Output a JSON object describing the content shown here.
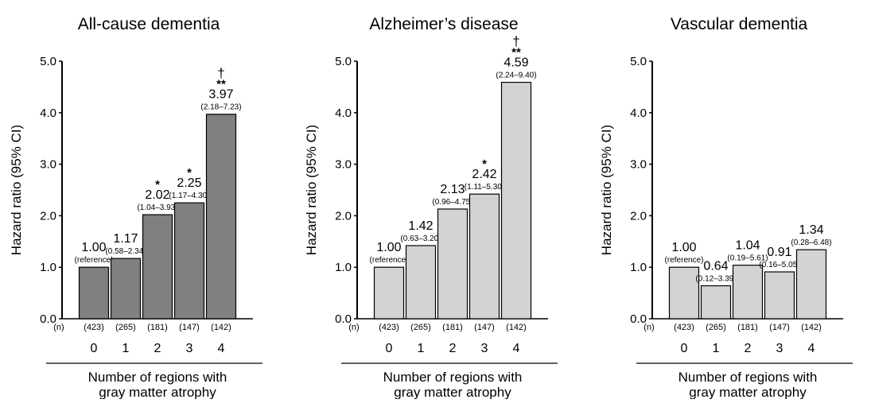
{
  "figure": {
    "xlabel_lines": [
      "Number of regions with",
      "gray matter atrophy"
    ],
    "ylabel": "Hazard ratio (95% CI)",
    "n_marker": "(n)"
  },
  "chart_data": [
    {
      "type": "bar",
      "title": "All-cause dementia",
      "xlabel": "Number of regions with gray matter atrophy",
      "ylabel": "Hazard ratio (95% CI)",
      "ylim": [
        0,
        5
      ],
      "yticks": [
        "0.0",
        "1.0",
        "2.0",
        "3.0",
        "4.0",
        "5.0"
      ],
      "categories": [
        "0",
        "1",
        "2",
        "3",
        "4"
      ],
      "n": [
        "(423)",
        "(265)",
        "(181)",
        "(147)",
        "(142)"
      ],
      "values": [
        1.0,
        1.17,
        2.02,
        2.25,
        3.97
      ],
      "value_labels": [
        "1.00",
        "1.17",
        "2.02",
        "2.25",
        "3.97"
      ],
      "ci_labels": [
        "(reference)",
        "(0.58–2.34)",
        "(1.04–3.93)",
        "(1.17–4.30)",
        "(2.18–7.23)"
      ],
      "significance": [
        "",
        "",
        "*",
        "*",
        "**"
      ],
      "trend_marks": [
        "",
        "",
        "",
        "",
        "†"
      ],
      "bar_color": "#808080"
    },
    {
      "type": "bar",
      "title": "Alzheimer’s disease",
      "xlabel": "Number of regions with gray matter atrophy",
      "ylabel": "Hazard ratio (95% CI)",
      "ylim": [
        0,
        5
      ],
      "yticks": [
        "0.0",
        "1.0",
        "2.0",
        "3.0",
        "4.0",
        "5.0"
      ],
      "categories": [
        "0",
        "1",
        "2",
        "3",
        "4"
      ],
      "n": [
        "(423)",
        "(265)",
        "(181)",
        "(147)",
        "(142)"
      ],
      "values": [
        1.0,
        1.42,
        2.13,
        2.42,
        4.59
      ],
      "value_labels": [
        "1.00",
        "1.42",
        "2.13",
        "2.42",
        "4.59"
      ],
      "ci_labels": [
        "(reference)",
        "(0.63–3.20)",
        "(0.96–4.75)",
        "(1.11–5.30)",
        "(2.24–9.40)"
      ],
      "significance": [
        "",
        "",
        "",
        "*",
        "**"
      ],
      "trend_marks": [
        "",
        "",
        "",
        "",
        "†"
      ],
      "bar_color": "#d3d3d3"
    },
    {
      "type": "bar",
      "title": "Vascular dementia",
      "xlabel": "Number of regions with gray matter atrophy",
      "ylabel": "Hazard ratio (95% CI)",
      "ylim": [
        0,
        5
      ],
      "yticks": [
        "0.0",
        "1.0",
        "2.0",
        "3.0",
        "4.0",
        "5.0"
      ],
      "categories": [
        "0",
        "1",
        "2",
        "3",
        "4"
      ],
      "n": [
        "(423)",
        "(265)",
        "(181)",
        "(147)",
        "(142)"
      ],
      "values": [
        1.0,
        0.64,
        1.04,
        0.91,
        1.34
      ],
      "value_labels": [
        "1.00",
        "0.64",
        "1.04",
        "0.91",
        "1.34"
      ],
      "ci_labels": [
        "(reference)",
        "(0.12–3.39)",
        "(0.19–5.61)",
        "(0.16–5.05)",
        "(0.28–6.48)"
      ],
      "significance": [
        "",
        "",
        "",
        "",
        ""
      ],
      "trend_marks": [
        "",
        "",
        "",
        "",
        ""
      ],
      "bar_color": "#d3d3d3"
    }
  ]
}
